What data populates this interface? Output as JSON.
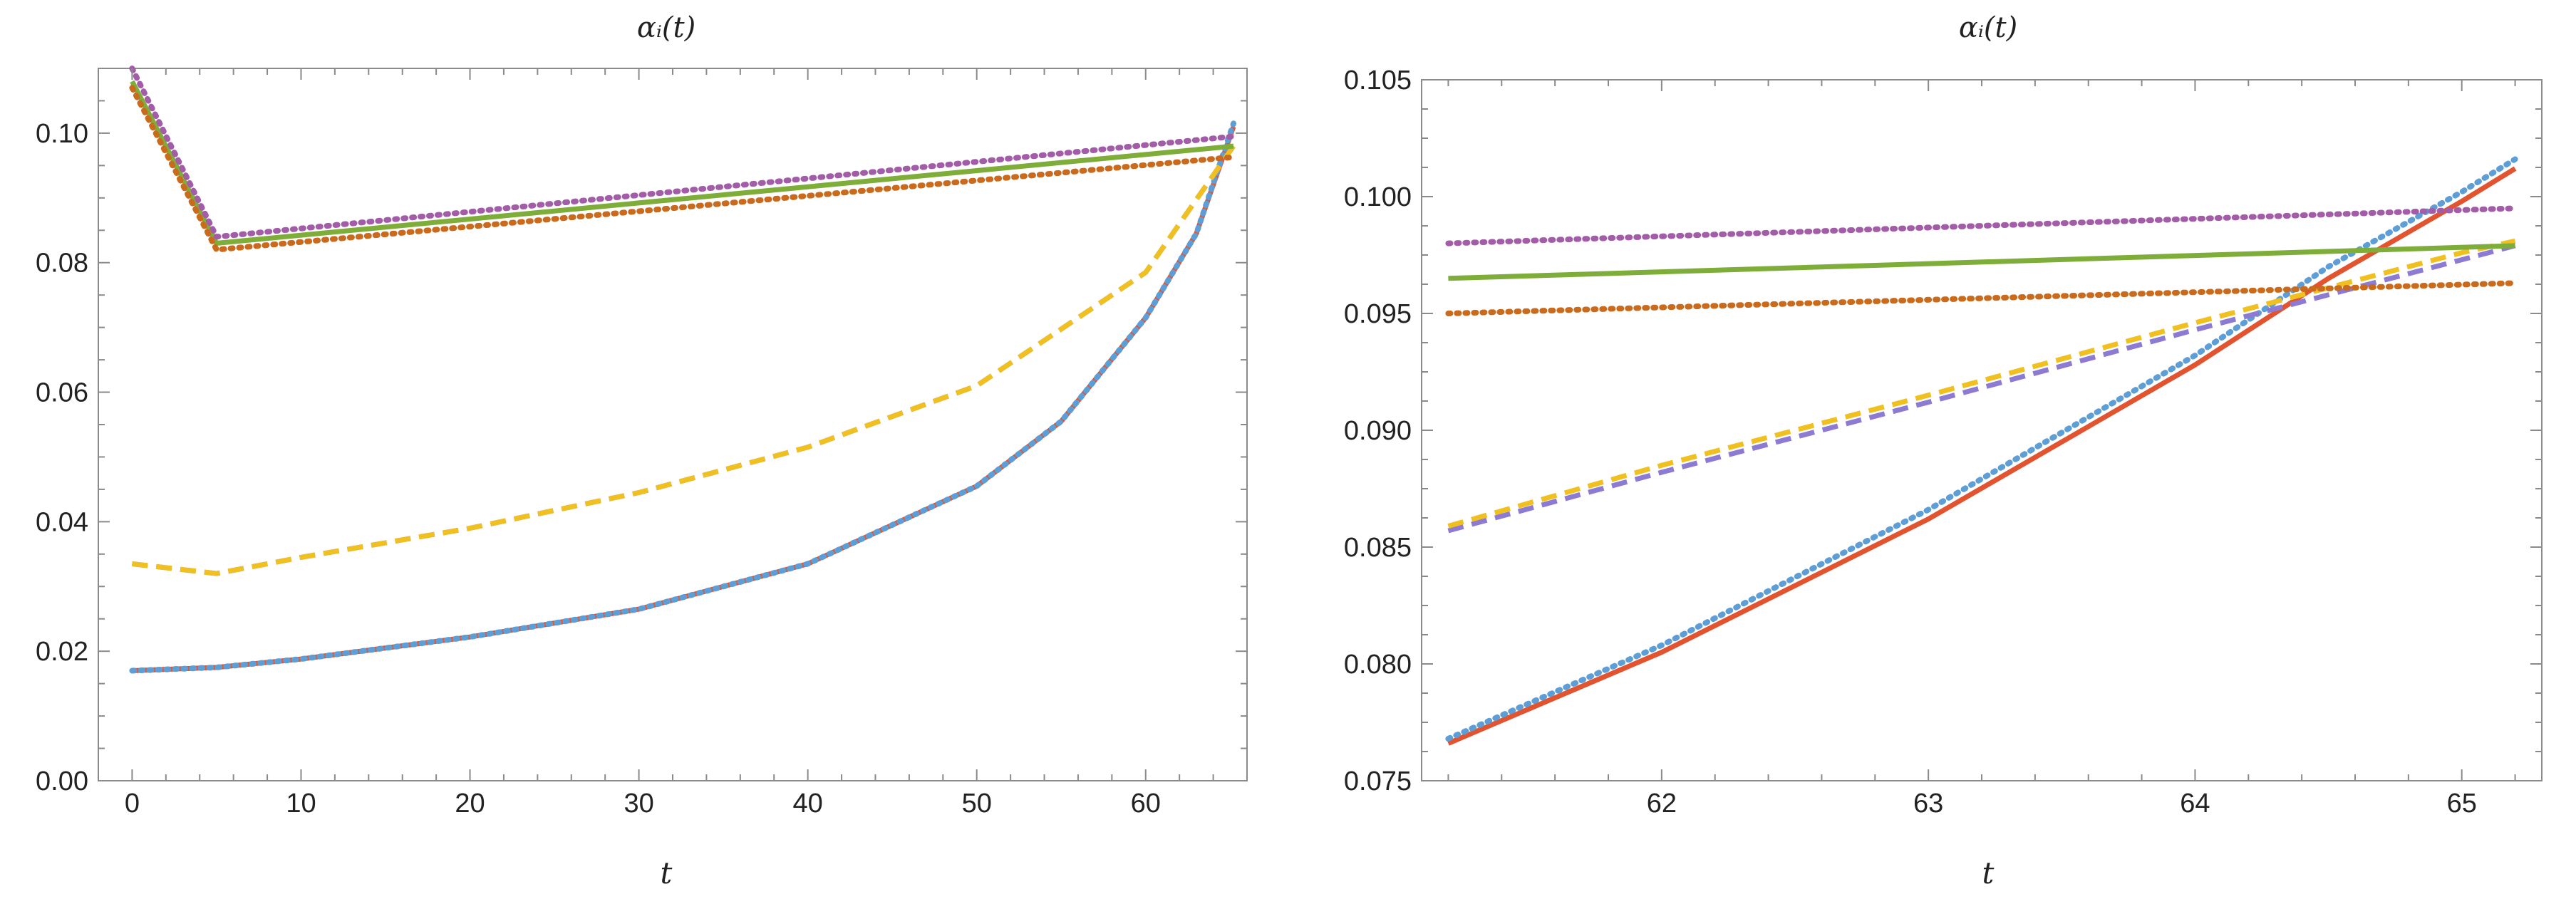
{
  "chart_data": [
    {
      "type": "line",
      "title": "αᵢ(t)",
      "xlabel": "t",
      "ylabel": "",
      "xlim": [
        -2,
        66
      ],
      "ylim": [
        0.0,
        0.11
      ],
      "xticks": [
        0,
        10,
        20,
        30,
        40,
        50,
        60
      ],
      "xtick_labels": [
        "0",
        "10",
        "20",
        "30",
        "40",
        "50",
        "60"
      ],
      "yticks": [
        0.0,
        0.02,
        0.04,
        0.06,
        0.08,
        0.1
      ],
      "ytick_labels": [
        "0.00",
        "0.02",
        "0.04",
        "0.06",
        "0.08",
        "0.10"
      ],
      "series": [
        {
          "name": "red (solid)",
          "color": "#e2532f",
          "style": "solid",
          "x": [
            0,
            5,
            10,
            20,
            30,
            40,
            50,
            55,
            60,
            63,
            65.2
          ],
          "y": [
            0.017,
            0.0175,
            0.0188,
            0.0222,
            0.0265,
            0.0335,
            0.0455,
            0.0555,
            0.0715,
            0.0845,
            0.101
          ]
        },
        {
          "name": "blue (dotted)",
          "color": "#5e9ed6",
          "style": "dotted",
          "x": [
            0,
            5,
            10,
            20,
            30,
            40,
            50,
            55,
            60,
            63,
            65.2
          ],
          "y": [
            0.017,
            0.0175,
            0.0188,
            0.0222,
            0.0265,
            0.0335,
            0.0455,
            0.0555,
            0.0715,
            0.0845,
            0.1015
          ]
        },
        {
          "name": "purple (dashed)",
          "color": "#8d7bd3",
          "style": "dashed",
          "x": [
            0,
            5,
            10,
            20,
            30,
            40,
            50,
            60,
            65.2
          ],
          "y": [
            0.0335,
            0.032,
            0.0345,
            0.039,
            0.0445,
            0.0515,
            0.061,
            0.0785,
            0.098
          ]
        },
        {
          "name": "yellow (dashed)",
          "color": "#f0c020",
          "style": "dashed",
          "x": [
            0,
            5,
            10,
            20,
            30,
            40,
            50,
            60,
            65.2
          ],
          "y": [
            0.0335,
            0.032,
            0.0345,
            0.039,
            0.0445,
            0.0515,
            0.061,
            0.0785,
            0.098
          ]
        },
        {
          "name": "green (solid)",
          "color": "#7fad3a",
          "style": "solid",
          "x": [
            0,
            5,
            65.2
          ],
          "y": [
            0.108,
            0.083,
            0.098
          ]
        },
        {
          "name": "magenta (dotted)",
          "color": "#a35da8",
          "style": "dotted",
          "x": [
            0,
            5,
            65.2
          ],
          "y": [
            0.11,
            0.084,
            0.0995
          ]
        },
        {
          "name": "orange (dotted)",
          "color": "#c96a1c",
          "style": "dotted",
          "x": [
            0,
            5,
            65.2
          ],
          "y": [
            0.107,
            0.082,
            0.0963
          ]
        }
      ]
    },
    {
      "type": "line",
      "title": "αᵢ(t)",
      "xlabel": "t",
      "ylabel": "",
      "xlim": [
        61.1,
        65.3
      ],
      "ylim": [
        0.075,
        0.105
      ],
      "xticks": [
        62,
        63,
        64,
        65
      ],
      "xtick_labels": [
        "62",
        "63",
        "64",
        "65"
      ],
      "yticks": [
        0.075,
        0.08,
        0.085,
        0.09,
        0.095,
        0.1,
        0.105
      ],
      "ytick_labels": [
        "0.075",
        "0.080",
        "0.085",
        "0.090",
        "0.095",
        "0.100",
        "0.105"
      ],
      "series": [
        {
          "name": "red (solid)",
          "color": "#e2532f",
          "style": "solid",
          "x": [
            61.2,
            62.0,
            63.0,
            64.0,
            64.5,
            65.0,
            65.2
          ],
          "y": [
            0.0766,
            0.0805,
            0.0862,
            0.0928,
            0.0965,
            0.0998,
            0.1012
          ]
        },
        {
          "name": "blue (dotted)",
          "color": "#5e9ed6",
          "style": "dotted",
          "x": [
            61.2,
            62.0,
            63.0,
            64.0,
            64.5,
            65.0,
            65.2
          ],
          "y": [
            0.0768,
            0.0808,
            0.0866,
            0.0932,
            0.097,
            0.1002,
            0.1016
          ]
        },
        {
          "name": "purple (dashed)",
          "color": "#8d7bd3",
          "style": "dashed",
          "x": [
            61.2,
            62.0,
            63.0,
            64.0,
            65.0,
            65.2
          ],
          "y": [
            0.0857,
            0.0882,
            0.0912,
            0.0943,
            0.0973,
            0.0979
          ]
        },
        {
          "name": "yellow (dashed)",
          "color": "#f0c020",
          "style": "dashed",
          "x": [
            61.2,
            62.0,
            63.0,
            64.0,
            65.0,
            65.2
          ],
          "y": [
            0.0859,
            0.0885,
            0.0915,
            0.0946,
            0.0976,
            0.0981
          ]
        },
        {
          "name": "green (solid)",
          "color": "#7fad3a",
          "style": "solid",
          "x": [
            61.2,
            65.2
          ],
          "y": [
            0.0965,
            0.0979
          ]
        },
        {
          "name": "magenta (dotted)",
          "color": "#a35da8",
          "style": "dotted",
          "x": [
            61.2,
            65.2
          ],
          "y": [
            0.098,
            0.0995
          ]
        },
        {
          "name": "orange (dotted)",
          "color": "#c96a1c",
          "style": "dotted",
          "x": [
            61.2,
            65.2
          ],
          "y": [
            0.095,
            0.0963
          ]
        }
      ]
    }
  ]
}
